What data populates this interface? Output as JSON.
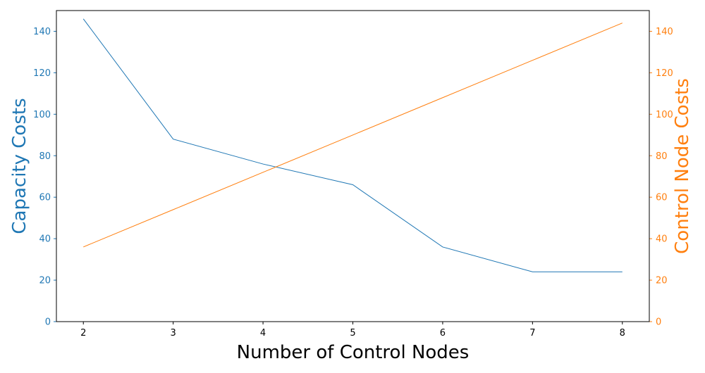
{
  "chart_data": {
    "type": "line",
    "xlabel": "Number of Control Nodes",
    "ylabel_left": "Capacity Costs",
    "ylabel_right": "Control Node Costs",
    "x": [
      2,
      3,
      4,
      5,
      6,
      7,
      8
    ],
    "xlim": [
      1.7,
      8.3
    ],
    "ylim_left": [
      0,
      150
    ],
    "ylim_right": [
      0,
      150
    ],
    "x_ticks": [
      "2",
      "3",
      "4",
      "5",
      "6",
      "7",
      "8"
    ],
    "y_ticks_left": [
      "0",
      "20",
      "40",
      "60",
      "80",
      "100",
      "120",
      "140"
    ],
    "y_ticks_right": [
      "0",
      "20",
      "40",
      "60",
      "80",
      "100",
      "120",
      "140"
    ],
    "grid": false,
    "series": [
      {
        "axis": "left",
        "color": "#1f77b4",
        "values": [
          146,
          88,
          76,
          66,
          36,
          24,
          24
        ]
      },
      {
        "axis": "right",
        "color": "#ff7f0e",
        "values": [
          36,
          54,
          72,
          90,
          108,
          126,
          144
        ]
      }
    ],
    "colors": {
      "left_axis": "#1f77b4",
      "right_axis": "#ff7f0e",
      "frame": "#000000"
    }
  }
}
